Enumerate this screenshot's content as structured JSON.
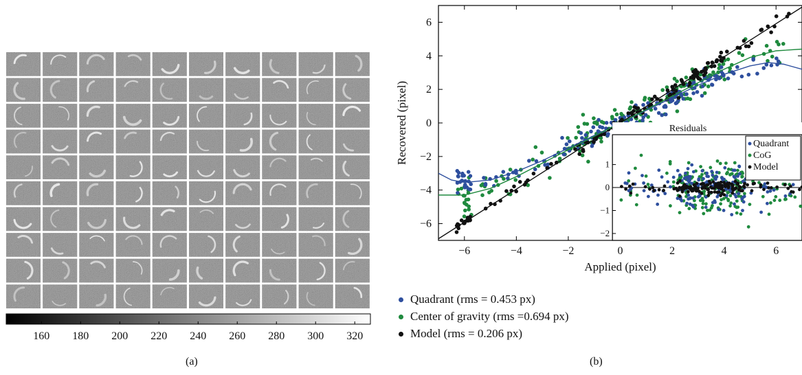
{
  "captions": {
    "a": "(a)",
    "b": "(b)"
  },
  "panel_a": {
    "colorbar_ticks": [
      "160",
      "180",
      "200",
      "220",
      "240",
      "260",
      "280",
      "300",
      "320"
    ],
    "colorbar_range": [
      142,
      328
    ],
    "grid_rows": 10,
    "grid_cols": 10
  },
  "colors": {
    "quadrant": "#2e4f9e",
    "cog": "#1f8a3e",
    "model": "#111111"
  },
  "chart_data": {
    "type": "scatter",
    "title": "",
    "xlabel": "Applied (pixel)",
    "ylabel": "Recovered (pixel)",
    "xlim": [
      -7,
      7
    ],
    "ylim": [
      -7,
      7
    ],
    "xticks": [
      -6,
      -4,
      -2,
      0,
      2,
      4,
      6
    ],
    "yticks": [
      -6,
      -4,
      -2,
      0,
      2,
      4,
      6
    ],
    "series": [
      {
        "name": "Quadrant (rms = 0.453 px)",
        "short": "Quadrant",
        "color": "#2e4f9e",
        "fit_curve": [
          [
            -7,
            -3.0
          ],
          [
            -6.5,
            -3.4
          ],
          [
            -6,
            -3.55
          ],
          [
            -5,
            -3.4
          ],
          [
            -4,
            -2.9
          ],
          [
            -3,
            -2.25
          ],
          [
            -2,
            -1.5
          ],
          [
            -1,
            -0.75
          ],
          [
            0,
            0
          ],
          [
            1,
            0.75
          ],
          [
            2,
            1.5
          ],
          [
            3,
            2.25
          ],
          [
            4,
            2.9
          ],
          [
            5,
            3.4
          ],
          [
            5.7,
            3.6
          ],
          [
            6.3,
            3.5
          ],
          [
            7,
            3.2
          ]
        ]
      },
      {
        "name": "Center of gravity (rms =0.694 px)",
        "short": "CoG",
        "color": "#1f8a3e",
        "fit_curve": [
          [
            -7,
            -4.3
          ],
          [
            -6,
            -4.3
          ],
          [
            -5,
            -3.9
          ],
          [
            -4,
            -3.2
          ],
          [
            -3,
            -2.4
          ],
          [
            -2,
            -1.6
          ],
          [
            -1,
            -0.8
          ],
          [
            0,
            0
          ],
          [
            1,
            0.8
          ],
          [
            2,
            1.6
          ],
          [
            3,
            2.4
          ],
          [
            4,
            3.2
          ],
          [
            5,
            3.9
          ],
          [
            6,
            4.3
          ],
          [
            7,
            4.4
          ]
        ]
      },
      {
        "name": "Model (rms = 0.206 px)",
        "short": "Model",
        "color": "#111111",
        "fit_curve": [
          [
            -7,
            -6.9
          ],
          [
            7,
            6.9
          ]
        ]
      }
    ],
    "inset": {
      "title": "Residuals",
      "xlim": [
        -0.3,
        7
      ],
      "ylim": [
        -2.3,
        2.3
      ],
      "yticks": [
        -2,
        -1,
        0,
        1
      ],
      "xticks": [
        0,
        2,
        4,
        6
      ]
    }
  }
}
